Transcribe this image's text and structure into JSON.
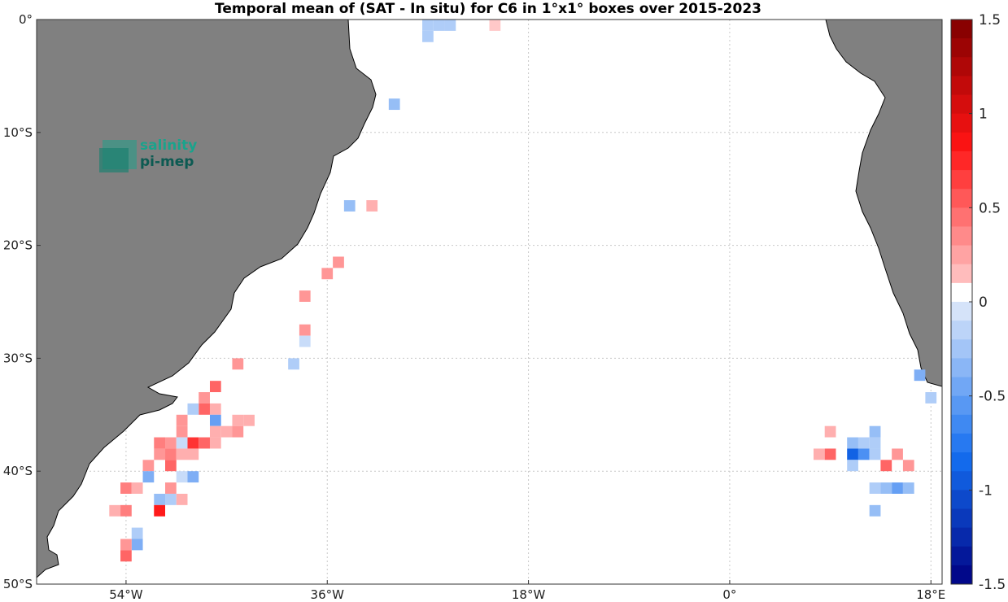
{
  "title": "Temporal mean of (SAT - In situ) for C6 in 1°x1° boxes over 2015-2023",
  "logo": {
    "line1": "salinity",
    "line2": "pi-mep"
  },
  "colors": {
    "land": "#808080",
    "ocean": "#ffffff",
    "grid": "#c8c8c8"
  },
  "map_extent": {
    "lon_min": -62,
    "lon_max": 19,
    "lat_min": -50,
    "lat_max": 0
  },
  "lon_ticks": [
    {
      "value": -54,
      "label": "54°W"
    },
    {
      "value": -36,
      "label": "36°W"
    },
    {
      "value": -18,
      "label": "18°W"
    },
    {
      "value": 0,
      "label": "0°"
    },
    {
      "value": 18,
      "label": "18°E"
    }
  ],
  "lat_ticks": [
    {
      "value": 0,
      "label": "0°"
    },
    {
      "value": -10,
      "label": "10°S"
    },
    {
      "value": -20,
      "label": "20°S"
    },
    {
      "value": -30,
      "label": "30°S"
    },
    {
      "value": -40,
      "label": "40°S"
    },
    {
      "value": -50,
      "label": "50°S"
    }
  ],
  "colorbar": {
    "min": -1.5,
    "max": 1.5,
    "step": 0.1,
    "ticks": [
      "1.5",
      "1",
      "0.5",
      "0",
      "-0.5",
      "-1",
      "-1.5"
    ]
  },
  "chart_data": {
    "type": "heatmap",
    "title": "Temporal mean of (SAT - In situ) for C6 in 1°x1° boxes over 2015-2023",
    "cell_size_deg": 1,
    "value_range": [
      -1.5,
      1.5
    ],
    "cells": [
      {
        "lon": -27,
        "lat": -0.5,
        "v": -0.2
      },
      {
        "lon": -26,
        "lat": -0.5,
        "v": -0.2
      },
      {
        "lon": -25,
        "lat": -0.5,
        "v": -0.2
      },
      {
        "lon": -21,
        "lat": -0.5,
        "v": 0.1
      },
      {
        "lon": -27,
        "lat": -1.5,
        "v": -0.2
      },
      {
        "lon": -30,
        "lat": -7.5,
        "v": -0.3
      },
      {
        "lon": -34,
        "lat": -16.5,
        "v": -0.3
      },
      {
        "lon": -32,
        "lat": -16.5,
        "v": 0.2
      },
      {
        "lon": -35,
        "lat": -21.5,
        "v": 0.3
      },
      {
        "lon": -36,
        "lat": -22.5,
        "v": 0.3
      },
      {
        "lon": -38,
        "lat": -24.5,
        "v": 0.3
      },
      {
        "lon": -38,
        "lat": -27.5,
        "v": 0.3
      },
      {
        "lon": -38,
        "lat": -28.5,
        "v": -0.1
      },
      {
        "lon": -39,
        "lat": -30.5,
        "v": -0.2
      },
      {
        "lon": -44,
        "lat": -30.5,
        "v": 0.3
      },
      {
        "lon": -46,
        "lat": -32.5,
        "v": 0.5
      },
      {
        "lon": -47,
        "lat": -33.5,
        "v": 0.3
      },
      {
        "lon": -47,
        "lat": -34.5,
        "v": 0.5
      },
      {
        "lon": -48,
        "lat": -34.5,
        "v": -0.2
      },
      {
        "lon": -46,
        "lat": -34.5,
        "v": 0.2
      },
      {
        "lon": -49,
        "lat": -35.5,
        "v": 0.3
      },
      {
        "lon": -46,
        "lat": -35.5,
        "v": -0.5
      },
      {
        "lon": -44,
        "lat": -35.5,
        "v": 0.2
      },
      {
        "lon": -43,
        "lat": -35.5,
        "v": 0.2
      },
      {
        "lon": -49,
        "lat": -36.5,
        "v": 0.3
      },
      {
        "lon": -46,
        "lat": -36.5,
        "v": 0.2
      },
      {
        "lon": -45,
        "lat": -36.5,
        "v": 0.2
      },
      {
        "lon": -44,
        "lat": -36.5,
        "v": 0.3
      },
      {
        "lon": -51,
        "lat": -37.5,
        "v": 0.4
      },
      {
        "lon": -50,
        "lat": -37.5,
        "v": 0.3
      },
      {
        "lon": -49,
        "lat": -37.5,
        "v": -0.1
      },
      {
        "lon": -48,
        "lat": -37.5,
        "v": 0.7
      },
      {
        "lon": -47,
        "lat": -37.5,
        "v": 0.5
      },
      {
        "lon": -46,
        "lat": -37.5,
        "v": 0.2
      },
      {
        "lon": -51,
        "lat": -38.5,
        "v": 0.3
      },
      {
        "lon": -50,
        "lat": -38.5,
        "v": 0.4
      },
      {
        "lon": -49,
        "lat": -38.5,
        "v": 0.2
      },
      {
        "lon": -48,
        "lat": -38.5,
        "v": 0.2
      },
      {
        "lon": -52,
        "lat": -39.5,
        "v": 0.3
      },
      {
        "lon": -50,
        "lat": -39.5,
        "v": 0.5
      },
      {
        "lon": -52,
        "lat": -40.5,
        "v": -0.4
      },
      {
        "lon": -49,
        "lat": -40.5,
        "v": -0.1
      },
      {
        "lon": -48,
        "lat": -40.5,
        "v": -0.4
      },
      {
        "lon": -54,
        "lat": -41.5,
        "v": 0.4
      },
      {
        "lon": -53,
        "lat": -41.5,
        "v": 0.2
      },
      {
        "lon": -50,
        "lat": -41.5,
        "v": 0.3
      },
      {
        "lon": -51,
        "lat": -42.5,
        "v": -0.3
      },
      {
        "lon": -50,
        "lat": -42.5,
        "v": -0.2
      },
      {
        "lon": -49,
        "lat": -42.5,
        "v": 0.2
      },
      {
        "lon": -55,
        "lat": -43.5,
        "v": 0.2
      },
      {
        "lon": -54,
        "lat": -43.5,
        "v": 0.4
      },
      {
        "lon": -51,
        "lat": -43.5,
        "v": 0.8
      },
      {
        "lon": -53,
        "lat": -45.5,
        "v": -0.2
      },
      {
        "lon": -53,
        "lat": -46.5,
        "v": -0.4
      },
      {
        "lon": -54,
        "lat": -46.5,
        "v": 0.3
      },
      {
        "lon": -54,
        "lat": -47.5,
        "v": 0.5
      },
      {
        "lon": 17,
        "lat": -31.5,
        "v": -0.4
      },
      {
        "lon": 18,
        "lat": -33.5,
        "v": -0.2
      },
      {
        "lon": 9,
        "lat": -36.5,
        "v": 0.2
      },
      {
        "lon": 13,
        "lat": -36.5,
        "v": -0.3
      },
      {
        "lon": 11,
        "lat": -37.5,
        "v": -0.3
      },
      {
        "lon": 12,
        "lat": -37.5,
        "v": -0.2
      },
      {
        "lon": 13,
        "lat": -37.5,
        "v": -0.2
      },
      {
        "lon": 8,
        "lat": -38.5,
        "v": 0.2
      },
      {
        "lon": 9,
        "lat": -38.5,
        "v": 0.5
      },
      {
        "lon": 11,
        "lat": -38.5,
        "v": -0.9
      },
      {
        "lon": 12,
        "lat": -38.5,
        "v": -0.6
      },
      {
        "lon": 13,
        "lat": -38.5,
        "v": -0.2
      },
      {
        "lon": 15,
        "lat": -38.5,
        "v": 0.3
      },
      {
        "lon": 11,
        "lat": -39.5,
        "v": -0.2
      },
      {
        "lon": 14,
        "lat": -39.5,
        "v": 0.5
      },
      {
        "lon": 16,
        "lat": -39.5,
        "v": 0.3
      },
      {
        "lon": 13,
        "lat": -41.5,
        "v": -0.2
      },
      {
        "lon": 14,
        "lat": -41.5,
        "v": -0.3
      },
      {
        "lon": 15,
        "lat": -41.5,
        "v": -0.5
      },
      {
        "lon": 16,
        "lat": -41.5,
        "v": -0.3
      },
      {
        "lon": 13,
        "lat": -43.5,
        "v": -0.3
      }
    ]
  }
}
